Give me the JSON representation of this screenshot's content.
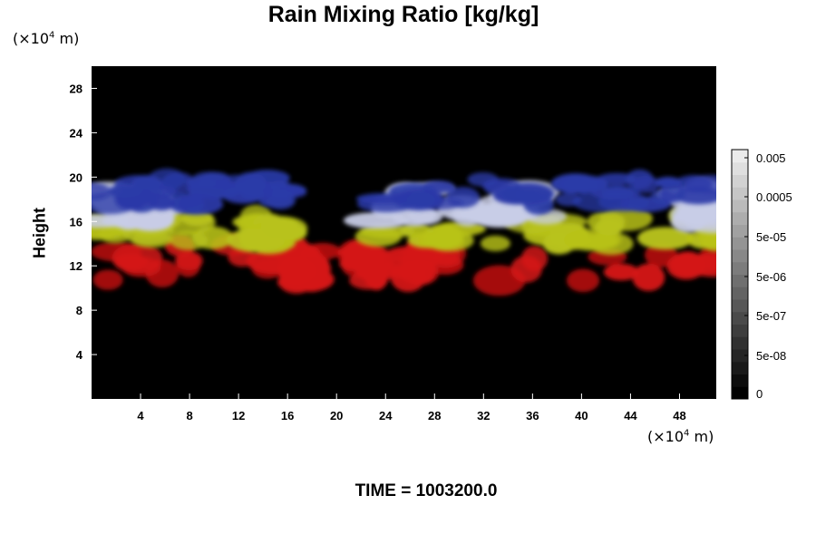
{
  "chart_data": {
    "type": "heatmap",
    "title": "Rain Mixing Ratio [kg/kg]",
    "ylabel": "Height",
    "x_unit": {
      "prefix": "(×10",
      "exp": "4",
      "suffix": " m)"
    },
    "y_unit": {
      "prefix": "(×10",
      "exp": "4",
      "suffix": " m)"
    },
    "x_ticks": [
      4,
      8,
      12,
      16,
      20,
      24,
      28,
      32,
      36,
      40,
      44,
      48
    ],
    "y_ticks": [
      4,
      8,
      12,
      16,
      20,
      24,
      28
    ],
    "xlim": [
      0,
      51
    ],
    "ylim": [
      0,
      30
    ],
    "background_color": "#000000",
    "layers": [
      {
        "name": "red",
        "color": "#d41414",
        "y_range": [
          10.5,
          14
        ]
      },
      {
        "name": "yellow",
        "color": "#b8c21a",
        "y_range": [
          14,
          16.5
        ]
      },
      {
        "name": "white",
        "color": "#c8cce6",
        "y_range": [
          16,
          19
        ]
      },
      {
        "name": "blue",
        "color": "#2a3aa8",
        "y_range": [
          17.5,
          20
        ]
      }
    ],
    "colorbar": {
      "labels": [
        "0.005",
        "0.0005",
        "5e-05",
        "5e-06",
        "5e-07",
        "5e-08",
        "0"
      ],
      "levels": 20
    },
    "time_label": "TIME = 1003200.0"
  }
}
